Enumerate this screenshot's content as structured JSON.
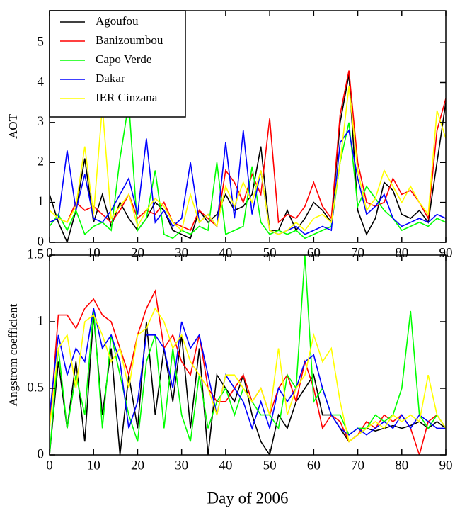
{
  "chart_data": [
    {
      "type": "line",
      "ylabel": "AOT",
      "x": [
        0,
        2,
        4,
        6,
        8,
        10,
        12,
        14,
        16,
        18,
        20,
        22,
        24,
        26,
        28,
        30,
        32,
        34,
        36,
        38,
        40,
        42,
        44,
        46,
        48,
        50,
        52,
        54,
        56,
        58,
        60,
        62,
        64,
        66,
        68,
        70,
        72,
        74,
        76,
        78,
        80,
        82,
        84,
        86,
        88,
        90
      ],
      "series": [
        {
          "name": "Agoufou",
          "color": "#000000",
          "values": [
            1.2,
            0.5,
            0.0,
            0.8,
            2.1,
            0.5,
            1.2,
            0.4,
            1.0,
            0.6,
            0.3,
            0.6,
            1.0,
            0.8,
            0.3,
            0.2,
            0.1,
            0.8,
            0.5,
            0.7,
            1.2,
            0.8,
            0.9,
            1.2,
            2.4,
            0.3,
            0.3,
            0.8,
            0.3,
            0.6,
            1.0,
            0.8,
            0.5,
            3.0,
            4.2,
            0.8,
            0.2,
            0.6,
            1.5,
            1.3,
            0.7,
            0.6,
            0.8,
            0.5,
            2.0,
            3.5
          ]
        },
        {
          "name": "Banizoumbou",
          "color": "#ff0000",
          "values": [
            0.5,
            0.6,
            0.5,
            1.0,
            0.8,
            0.9,
            0.7,
            0.5,
            0.8,
            1.2,
            0.6,
            0.8,
            0.7,
            1.0,
            0.5,
            0.4,
            0.3,
            0.8,
            0.6,
            0.4,
            1.8,
            1.5,
            1.0,
            1.7,
            1.2,
            3.1,
            0.5,
            0.7,
            0.6,
            0.9,
            1.5,
            0.9,
            0.6,
            3.2,
            4.3,
            2.0,
            1.0,
            0.9,
            1.0,
            1.6,
            1.2,
            1.3,
            1.0,
            0.6,
            2.8,
            3.6
          ]
        },
        {
          "name": "Capo Verde",
          "color": "#00ff00",
          "values": [
            0.4,
            0.7,
            0.3,
            0.8,
            0.2,
            0.4,
            0.5,
            0.3,
            2.1,
            3.5,
            0.3,
            0.6,
            1.8,
            0.2,
            0.1,
            0.3,
            0.2,
            0.4,
            0.3,
            2.0,
            0.2,
            0.3,
            0.4,
            1.9,
            0.5,
            0.2,
            0.3,
            0.2,
            0.3,
            0.1,
            0.2,
            0.3,
            0.4,
            2.0,
            3.0,
            0.9,
            1.4,
            1.1,
            0.8,
            0.6,
            0.3,
            0.4,
            0.5,
            0.4,
            0.6,
            0.5
          ]
        },
        {
          "name": "Dakar",
          "color": "#0000ff",
          "values": [
            0.5,
            0.6,
            2.3,
            0.8,
            1.7,
            0.6,
            0.5,
            0.8,
            1.2,
            1.6,
            0.7,
            2.6,
            0.5,
            0.8,
            0.4,
            0.6,
            2.0,
            0.5,
            0.7,
            0.4,
            2.5,
            0.6,
            2.8,
            0.7,
            1.8,
            0.3,
            0.2,
            0.3,
            0.4,
            0.2,
            0.3,
            0.4,
            0.3,
            2.5,
            2.8,
            1.6,
            0.7,
            0.9,
            1.2,
            0.6,
            0.4,
            0.5,
            0.6,
            0.5,
            0.7,
            0.6
          ]
        },
        {
          "name": "IER Cinzana",
          "color": "#ffff00",
          "values": [
            0.8,
            0.6,
            0.5,
            0.9,
            2.4,
            0.7,
            3.4,
            0.6,
            0.9,
            1.2,
            0.4,
            0.8,
            1.1,
            0.9,
            0.5,
            0.3,
            1.2,
            0.5,
            0.7,
            0.4,
            1.4,
            0.9,
            1.5,
            1.0,
            1.8,
            0.3,
            0.2,
            0.3,
            0.5,
            0.3,
            0.6,
            0.7,
            0.5,
            2.0,
            3.9,
            1.8,
            0.8,
            1.1,
            1.8,
            1.4,
            1.0,
            1.4,
            1.0,
            0.7,
            3.3,
            2.6
          ]
        }
      ],
      "xlim": [
        0,
        90
      ],
      "xticks": [
        0,
        10,
        20,
        30,
        40,
        50,
        60,
        70,
        80,
        90
      ],
      "ylim": [
        0,
        5.8
      ],
      "yticks": [
        0,
        1,
        2,
        3,
        4,
        5
      ],
      "legend": "upper left"
    },
    {
      "type": "line",
      "ylabel": "Angstrom coefficient",
      "xlabel": "Day of 2006",
      "x": [
        0,
        2,
        4,
        6,
        8,
        10,
        12,
        14,
        16,
        18,
        20,
        22,
        24,
        26,
        28,
        30,
        32,
        34,
        36,
        38,
        40,
        42,
        44,
        46,
        48,
        50,
        52,
        54,
        56,
        58,
        60,
        62,
        64,
        66,
        68,
        70,
        72,
        74,
        76,
        78,
        80,
        82,
        84,
        86,
        88,
        90
      ],
      "series": [
        {
          "color": "#000000",
          "values": [
            0.0,
            0.7,
            0.2,
            0.7,
            0.1,
            1.05,
            0.3,
            0.8,
            0.0,
            0.6,
            0.2,
            1.0,
            0.3,
            0.8,
            0.4,
            0.9,
            0.2,
            0.8,
            0.0,
            0.6,
            0.5,
            0.4,
            0.6,
            0.3,
            0.1,
            0.0,
            0.3,
            0.2,
            0.4,
            0.5,
            0.6,
            0.3,
            0.3,
            0.2,
            0.1,
            0.15,
            0.2,
            0.18,
            0.2,
            0.22,
            0.2,
            0.22,
            0.25,
            0.2,
            0.25,
            0.2
          ]
        },
        {
          "color": "#ff0000",
          "values": [
            0.2,
            1.05,
            1.05,
            0.95,
            1.1,
            1.17,
            1.05,
            1.0,
            0.8,
            0.6,
            0.9,
            1.1,
            1.23,
            0.8,
            0.9,
            0.7,
            0.6,
            0.9,
            0.5,
            0.4,
            0.4,
            0.5,
            0.6,
            0.4,
            0.5,
            0.3,
            0.5,
            0.6,
            0.4,
            0.7,
            0.5,
            0.2,
            0.3,
            0.25,
            0.1,
            0.15,
            0.25,
            0.2,
            0.3,
            0.25,
            0.3,
            0.2,
            0.0,
            0.25,
            0.3,
            0.2
          ]
        },
        {
          "color": "#00ff00",
          "values": [
            0.0,
            0.8,
            0.2,
            0.6,
            0.3,
            1.1,
            0.2,
            0.9,
            0.6,
            0.3,
            0.1,
            0.7,
            0.9,
            0.2,
            0.8,
            0.3,
            0.1,
            0.6,
            0.2,
            0.4,
            0.5,
            0.3,
            0.5,
            0.4,
            0.3,
            0.3,
            0.2,
            0.6,
            0.5,
            1.5,
            0.4,
            0.5,
            0.3,
            0.3,
            0.15,
            0.2,
            0.2,
            0.3,
            0.25,
            0.3,
            0.5,
            1.08,
            0.3,
            0.2,
            0.3,
            0.2
          ]
        },
        {
          "color": "#0000ff",
          "values": [
            0.3,
            0.9,
            0.6,
            0.8,
            0.7,
            1.1,
            0.8,
            0.9,
            0.7,
            0.2,
            0.4,
            0.9,
            0.9,
            0.8,
            0.5,
            1.0,
            0.8,
            0.9,
            0.6,
            0.3,
            0.6,
            0.5,
            0.4,
            0.2,
            0.4,
            0.2,
            0.5,
            0.4,
            0.5,
            0.7,
            0.75,
            0.5,
            0.3,
            0.2,
            0.15,
            0.2,
            0.15,
            0.2,
            0.25,
            0.2,
            0.3,
            0.2,
            0.3,
            0.25,
            0.2,
            0.2
          ]
        },
        {
          "color": "#ffff00",
          "values": [
            0.2,
            0.8,
            0.9,
            0.5,
            1.0,
            1.05,
            0.9,
            0.7,
            0.8,
            0.5,
            0.9,
            0.95,
            1.1,
            1.0,
            0.8,
            0.9,
            0.7,
            0.6,
            0.5,
            0.3,
            0.6,
            0.6,
            0.5,
            0.4,
            0.5,
            0.3,
            0.8,
            0.3,
            0.5,
            0.6,
            0.9,
            0.7,
            0.8,
            0.4,
            0.1,
            0.15,
            0.2,
            0.25,
            0.2,
            0.3,
            0.25,
            0.3,
            0.25,
            0.6,
            0.3,
            0.2
          ]
        }
      ],
      "xlim": [
        0,
        90
      ],
      "xticks": [
        0,
        10,
        20,
        30,
        40,
        50,
        60,
        70,
        80,
        90
      ],
      "ylim": [
        0,
        1.5
      ],
      "yticks": [
        0,
        0.5,
        1,
        1.5
      ]
    }
  ]
}
